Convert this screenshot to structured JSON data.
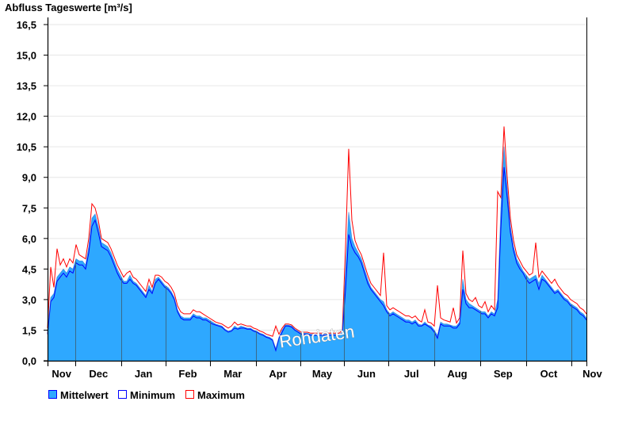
{
  "chart_data": {
    "type": "area",
    "title": "Abfluss Tageswerte [m³/s]",
    "xlabel": "",
    "ylabel": "Abfluss Tageswerte [m³/s]",
    "ylim": [
      0,
      16.5
    ],
    "yticks": [
      0,
      1.5,
      3,
      4.5,
      6,
      7.5,
      9,
      10.5,
      12,
      13.5,
      15,
      16.5
    ],
    "ytick_labels": [
      "0,0",
      "1,5",
      "3,0",
      "4,5",
      "6,0",
      "7,5",
      "9,0",
      "10,5",
      "12,0",
      "13,5",
      "15,0",
      "16,5"
    ],
    "grid": true,
    "x_range_days": [
      0,
      365
    ],
    "month_boundaries_days": [
      19,
      50,
      80,
      110,
      141,
      171,
      201,
      231,
      262,
      293,
      324,
      355
    ],
    "month_labels": [
      {
        "label": "Nov",
        "day": 9.5
      },
      {
        "label": "Dec",
        "day": 34.5
      },
      {
        "label": "Jan",
        "day": 65
      },
      {
        "label": "Feb",
        "day": 95
      },
      {
        "label": "Mar",
        "day": 125.5
      },
      {
        "label": "Apr",
        "day": 156
      },
      {
        "label": "May",
        "day": 186
      },
      {
        "label": "Jun",
        "day": 216
      },
      {
        "label": "Jul",
        "day": 246.5
      },
      {
        "label": "Aug",
        "day": 277.5
      },
      {
        "label": "Sep",
        "day": 308.5
      },
      {
        "label": "Oct",
        "day": 339.5
      },
      {
        "label": "Nov",
        "day": 369
      }
    ],
    "watermark": "Rohdaten",
    "series": [
      {
        "name": "Mittelwert",
        "color": "#2ea8ff",
        "kind": "area",
        "values": [
          1.4,
          3.1,
          3.3,
          4.1,
          4.3,
          4.5,
          4.3,
          4.6,
          4.5,
          5.0,
          4.9,
          4.9,
          4.7,
          5.6,
          7.0,
          7.2,
          6.6,
          5.8,
          5.7,
          5.6,
          5.3,
          4.9,
          4.5,
          4.2,
          3.9,
          3.9,
          4.2,
          3.9,
          3.8,
          3.6,
          3.4,
          3.2,
          3.7,
          3.4,
          4.0,
          4.1,
          3.9,
          3.7,
          3.6,
          3.4,
          3.1,
          2.5,
          2.2,
          2.1,
          2.1,
          2.1,
          2.3,
          2.2,
          2.2,
          2.1,
          2.1,
          2.0,
          1.9,
          1.8,
          1.75,
          1.7,
          1.55,
          1.45,
          1.5,
          1.7,
          1.6,
          1.7,
          1.65,
          1.6,
          1.6,
          1.5,
          1.45,
          1.35,
          1.3,
          1.2,
          1.15,
          1.05,
          0.6,
          1.15,
          1.5,
          1.75,
          1.75,
          1.7,
          1.55,
          1.45,
          1.35,
          1.35,
          1.35,
          1.3,
          1.3,
          1.3,
          1.3,
          1.3,
          1.3,
          1.3,
          1.3,
          1.3,
          1.3,
          1.4,
          4.5,
          7.3,
          6.0,
          5.6,
          5.3,
          5.0,
          4.5,
          4.0,
          3.6,
          3.4,
          3.2,
          3.0,
          2.9,
          2.5,
          2.3,
          2.4,
          2.3,
          2.2,
          2.1,
          2.0,
          2.0,
          1.9,
          2.0,
          1.8,
          1.75,
          1.9,
          1.75,
          1.7,
          1.5,
          1.25,
          1.9,
          1.8,
          1.8,
          1.75,
          1.7,
          1.7,
          1.9,
          4.0,
          3.0,
          2.8,
          2.7,
          2.6,
          2.5,
          2.4,
          2.4,
          2.2,
          2.4,
          2.3,
          3.0,
          7.5,
          10.5,
          8.5,
          6.6,
          5.6,
          5.0,
          4.7,
          4.4,
          4.2,
          4.0,
          4.1,
          4.2,
          3.8,
          4.2,
          4.0,
          3.8,
          3.6,
          3.4,
          3.5,
          3.3,
          3.1,
          3.0,
          2.8,
          2.7,
          2.6,
          2.4,
          2.3,
          2.1
        ]
      },
      {
        "name": "Minimum",
        "color": "#0000ff",
        "kind": "line",
        "values": [
          1.3,
          2.9,
          3.1,
          3.9,
          4.1,
          4.3,
          4.1,
          4.4,
          4.3,
          4.8,
          4.7,
          4.7,
          4.5,
          5.3,
          6.6,
          6.9,
          6.3,
          5.6,
          5.5,
          5.4,
          5.1,
          4.7,
          4.3,
          4.0,
          3.8,
          3.8,
          4.0,
          3.8,
          3.7,
          3.5,
          3.3,
          3.1,
          3.5,
          3.3,
          3.8,
          4.0,
          3.8,
          3.6,
          3.5,
          3.3,
          3.0,
          2.4,
          2.1,
          2.0,
          2.0,
          2.0,
          2.2,
          2.1,
          2.1,
          2.0,
          2.0,
          1.9,
          1.8,
          1.75,
          1.7,
          1.65,
          1.5,
          1.4,
          1.45,
          1.6,
          1.55,
          1.6,
          1.6,
          1.55,
          1.55,
          1.45,
          1.4,
          1.3,
          1.25,
          1.15,
          1.1,
          1.0,
          0.5,
          1.1,
          1.4,
          1.7,
          1.7,
          1.65,
          1.5,
          1.4,
          1.3,
          1.3,
          1.3,
          1.25,
          1.25,
          1.25,
          1.25,
          1.25,
          1.25,
          1.25,
          1.25,
          1.25,
          1.25,
          1.35,
          3.5,
          6.2,
          5.6,
          5.3,
          5.1,
          4.8,
          4.3,
          3.8,
          3.5,
          3.3,
          3.1,
          2.9,
          2.7,
          2.4,
          2.2,
          2.3,
          2.2,
          2.1,
          2.0,
          1.9,
          1.9,
          1.8,
          1.9,
          1.7,
          1.7,
          1.8,
          1.7,
          1.6,
          1.4,
          1.1,
          1.8,
          1.7,
          1.7,
          1.7,
          1.6,
          1.6,
          1.8,
          3.5,
          2.8,
          2.6,
          2.6,
          2.5,
          2.4,
          2.3,
          2.3,
          2.1,
          2.3,
          2.2,
          2.6,
          6.5,
          9.5,
          8.0,
          6.3,
          5.4,
          4.8,
          4.5,
          4.3,
          4.0,
          3.8,
          3.9,
          4.0,
          3.5,
          4.0,
          3.9,
          3.7,
          3.5,
          3.3,
          3.4,
          3.2,
          3.0,
          2.9,
          2.7,
          2.6,
          2.5,
          2.3,
          2.2,
          2.0
        ]
      },
      {
        "name": "Maximum",
        "color": "#ff0000",
        "kind": "line",
        "values": [
          1.6,
          4.6,
          3.6,
          5.5,
          4.7,
          5.0,
          4.6,
          5.0,
          4.8,
          5.7,
          5.2,
          5.1,
          5.0,
          6.0,
          7.7,
          7.5,
          6.9,
          6.0,
          5.9,
          5.8,
          5.5,
          5.1,
          4.7,
          4.4,
          4.1,
          4.3,
          4.4,
          4.1,
          4.0,
          3.8,
          3.6,
          3.4,
          4.0,
          3.6,
          4.2,
          4.2,
          4.1,
          3.9,
          3.8,
          3.6,
          3.3,
          2.7,
          2.4,
          2.3,
          2.3,
          2.3,
          2.5,
          2.4,
          2.4,
          2.3,
          2.2,
          2.1,
          2.0,
          1.9,
          1.85,
          1.8,
          1.7,
          1.6,
          1.7,
          1.9,
          1.75,
          1.8,
          1.75,
          1.7,
          1.7,
          1.6,
          1.55,
          1.45,
          1.4,
          1.3,
          1.25,
          1.2,
          1.7,
          1.3,
          1.6,
          1.8,
          1.8,
          1.75,
          1.6,
          1.5,
          1.4,
          1.4,
          1.4,
          1.35,
          1.35,
          1.35,
          1.35,
          1.35,
          1.35,
          1.35,
          1.35,
          1.35,
          1.35,
          1.5,
          5.6,
          10.4,
          6.9,
          5.9,
          5.5,
          5.2,
          4.7,
          4.2,
          3.8,
          3.6,
          3.4,
          3.2,
          5.3,
          2.7,
          2.5,
          2.6,
          2.5,
          2.4,
          2.3,
          2.2,
          2.2,
          2.1,
          2.2,
          2.0,
          1.9,
          2.5,
          1.9,
          1.85,
          1.7,
          3.7,
          2.1,
          2.0,
          1.95,
          1.9,
          2.6,
          1.85,
          2.1,
          5.4,
          3.3,
          3.0,
          2.9,
          3.1,
          2.7,
          2.6,
          2.9,
          2.4,
          2.7,
          2.5,
          8.3,
          8.0,
          11.5,
          9.0,
          7.0,
          5.9,
          5.2,
          4.9,
          4.6,
          4.4,
          4.2,
          4.3,
          5.8,
          4.1,
          4.4,
          4.2,
          4.0,
          3.8,
          4.0,
          3.7,
          3.5,
          3.3,
          3.2,
          3.0,
          2.9,
          2.8,
          2.6,
          2.5,
          2.3
        ]
      }
    ],
    "legend": {
      "placement": "bottom-left",
      "entries": [
        {
          "label": "Mittelwert",
          "color": "#2ea8ff"
        },
        {
          "label": "Minimum",
          "color": "#0000ff"
        },
        {
          "label": "Maximum",
          "color": "#ff0000"
        }
      ]
    }
  }
}
